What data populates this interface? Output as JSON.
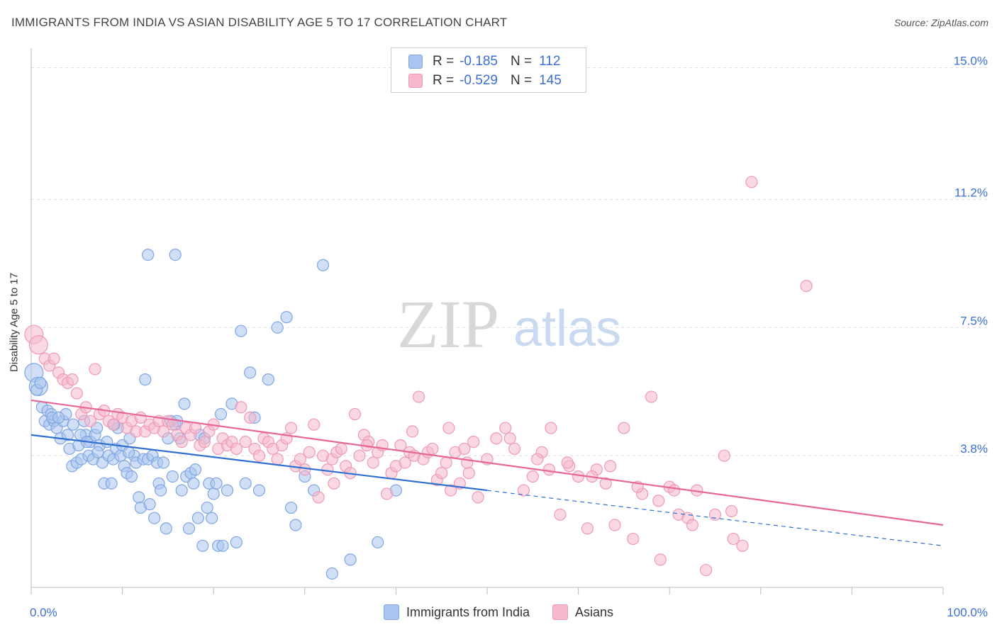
{
  "title": "IMMIGRANTS FROM INDIA VS ASIAN DISABILITY AGE 5 TO 17 CORRELATION CHART",
  "source": "Source: ZipAtlas.com",
  "watermark": {
    "zip": "ZIP",
    "atlas": "atlas"
  },
  "colors": {
    "blue_fill": "#a9c4ef",
    "blue_stroke": "#7fa6e3",
    "blue_line": "#2f6fd1",
    "pink_fill": "#f6b8cc",
    "pink_stroke": "#ee9ab6",
    "pink_line": "#e8679a",
    "value_text": "#3b6fd4",
    "grid": "#dddddd"
  },
  "legend": {
    "rows": [
      {
        "r_label": "R =",
        "r_value": "-0.185",
        "n_label": "N =",
        "n_value": "112",
        "color": "#a9c4ef"
      },
      {
        "r_label": "R =",
        "r_value": "-0.529",
        "n_label": "N =",
        "n_value": "145",
        "color": "#f6b8cc"
      }
    ]
  },
  "chart_data": {
    "type": "scatter",
    "title": "IMMIGRANTS FROM INDIA VS ASIAN DISABILITY AGE 5 TO 17 CORRELATION CHART",
    "xlabel": "",
    "ylabel": "Disability Age 5 to 17",
    "xlim": [
      0,
      100
    ],
    "ylim": [
      0,
      15.4
    ],
    "x_tick_labels": [
      {
        "value": 0,
        "label": "0.0%"
      },
      {
        "value": 100,
        "label": "100.0%"
      }
    ],
    "y_tick_labels": [
      {
        "value": 3.8,
        "label": "3.8%"
      },
      {
        "value": 7.5,
        "label": "7.5%"
      },
      {
        "value": 11.2,
        "label": "11.2%"
      },
      {
        "value": 15.0,
        "label": "15.0%"
      }
    ],
    "grid": true,
    "legend_position": "top-center",
    "series": [
      {
        "name": "Immigrants from India",
        "color": "#a9c4ef",
        "r": -0.185,
        "n": 112,
        "trend": {
          "x0": 0,
          "y0": 4.4,
          "x1": 50,
          "y1": 2.8,
          "dashed_to_x": 100,
          "dashed_to_y": 1.2
        },
        "points": [
          [
            0.3,
            6.2
          ],
          [
            0.8,
            5.8
          ],
          [
            1.2,
            5.2
          ],
          [
            1.5,
            4.8
          ],
          [
            1.8,
            5.1
          ],
          [
            2.0,
            4.7
          ],
          [
            2.5,
            4.8
          ],
          [
            2.2,
            5.0
          ],
          [
            2.8,
            4.6
          ],
          [
            3.2,
            4.3
          ],
          [
            3.5,
            4.8
          ],
          [
            3.8,
            5.0
          ],
          [
            4.0,
            4.4
          ],
          [
            4.2,
            4.0
          ],
          [
            4.5,
            3.5
          ],
          [
            5.0,
            3.6
          ],
          [
            5.2,
            4.1
          ],
          [
            5.5,
            3.7
          ],
          [
            5.8,
            4.8
          ],
          [
            6.0,
            4.4
          ],
          [
            6.3,
            3.8
          ],
          [
            6.5,
            4.2
          ],
          [
            6.8,
            3.7
          ],
          [
            7.0,
            4.4
          ],
          [
            7.2,
            4.6
          ],
          [
            7.5,
            4.1
          ],
          [
            7.8,
            3.6
          ],
          [
            8.0,
            3.0
          ],
          [
            8.3,
            4.2
          ],
          [
            8.5,
            3.8
          ],
          [
            8.8,
            3.0
          ],
          [
            9.0,
            3.7
          ],
          [
            9.3,
            4.0
          ],
          [
            9.5,
            4.6
          ],
          [
            9.8,
            3.8
          ],
          [
            10.0,
            4.1
          ],
          [
            10.2,
            3.5
          ],
          [
            10.5,
            3.3
          ],
          [
            10.8,
            4.3
          ],
          [
            11.0,
            3.2
          ],
          [
            11.3,
            3.8
          ],
          [
            11.5,
            3.6
          ],
          [
            11.8,
            2.6
          ],
          [
            12.0,
            2.3
          ],
          [
            12.3,
            3.7
          ],
          [
            12.5,
            6.0
          ],
          [
            12.8,
            3.7
          ],
          [
            13.0,
            2.4
          ],
          [
            13.3,
            3.8
          ],
          [
            13.5,
            2.0
          ],
          [
            13.8,
            3.6
          ],
          [
            14.0,
            3.0
          ],
          [
            14.2,
            2.8
          ],
          [
            14.5,
            3.6
          ],
          [
            14.8,
            1.7
          ],
          [
            15.0,
            4.3
          ],
          [
            15.3,
            4.8
          ],
          [
            15.5,
            3.2
          ],
          [
            15.8,
            4.7
          ],
          [
            16.0,
            4.8
          ],
          [
            16.3,
            4.3
          ],
          [
            16.5,
            2.8
          ],
          [
            16.8,
            5.3
          ],
          [
            17.0,
            3.2
          ],
          [
            17.3,
            1.7
          ],
          [
            17.5,
            3.3
          ],
          [
            17.8,
            3.0
          ],
          [
            18.0,
            3.4
          ],
          [
            18.3,
            2.0
          ],
          [
            18.5,
            4.4
          ],
          [
            18.8,
            1.2
          ],
          [
            19.0,
            4.3
          ],
          [
            19.3,
            2.3
          ],
          [
            19.5,
            3.0
          ],
          [
            19.8,
            2.0
          ],
          [
            20.0,
            2.7
          ],
          [
            20.3,
            3.0
          ],
          [
            20.5,
            1.2
          ],
          [
            20.8,
            5.0
          ],
          [
            21.0,
            1.2
          ],
          [
            21.5,
            2.8
          ],
          [
            22.0,
            5.3
          ],
          [
            22.5,
            1.3
          ],
          [
            23.0,
            7.4
          ],
          [
            23.5,
            3.0
          ],
          [
            24.0,
            6.2
          ],
          [
            24.5,
            4.9
          ],
          [
            25.0,
            2.8
          ],
          [
            26.0,
            6.0
          ],
          [
            27.0,
            7.5
          ],
          [
            28.0,
            7.8
          ],
          [
            28.5,
            2.3
          ],
          [
            29.0,
            1.8
          ],
          [
            30.0,
            3.2
          ],
          [
            31.0,
            2.8
          ],
          [
            32.0,
            9.3
          ],
          [
            33.0,
            0.4
          ],
          [
            35.0,
            0.8
          ],
          [
            38.0,
            1.3
          ],
          [
            40.0,
            2.8
          ],
          [
            12.8,
            9.6
          ],
          [
            15.8,
            9.6
          ],
          [
            0.6,
            5.7
          ],
          [
            1.0,
            5.9
          ],
          [
            2.3,
            4.9
          ],
          [
            3.0,
            4.9
          ],
          [
            4.6,
            4.7
          ],
          [
            5.4,
            4.4
          ],
          [
            6.1,
            4.2
          ],
          [
            7.3,
            3.9
          ],
          [
            9.1,
            4.7
          ],
          [
            10.7,
            3.9
          ]
        ]
      },
      {
        "name": "Asians",
        "color": "#f6b8cc",
        "r": -0.529,
        "n": 145,
        "trend": {
          "x0": 0,
          "y0": 5.4,
          "x1": 100,
          "y1": 1.8
        },
        "points": [
          [
            0.3,
            7.3
          ],
          [
            0.8,
            7.0
          ],
          [
            1.5,
            6.6
          ],
          [
            2.0,
            6.4
          ],
          [
            2.5,
            6.6
          ],
          [
            3.0,
            6.2
          ],
          [
            3.5,
            6.0
          ],
          [
            4.0,
            5.9
          ],
          [
            4.5,
            6.0
          ],
          [
            5.0,
            5.6
          ],
          [
            5.5,
            5.0
          ],
          [
            6.0,
            5.2
          ],
          [
            6.5,
            4.8
          ],
          [
            7.0,
            6.3
          ],
          [
            7.5,
            5.0
          ],
          [
            8.0,
            5.1
          ],
          [
            8.5,
            4.8
          ],
          [
            9.0,
            4.7
          ],
          [
            9.5,
            5.0
          ],
          [
            10.0,
            4.9
          ],
          [
            10.5,
            4.6
          ],
          [
            11.0,
            4.8
          ],
          [
            11.5,
            4.5
          ],
          [
            12.0,
            4.9
          ],
          [
            12.5,
            4.5
          ],
          [
            13.0,
            4.7
          ],
          [
            13.5,
            4.6
          ],
          [
            14.0,
            4.8
          ],
          [
            14.5,
            4.5
          ],
          [
            15.0,
            4.8
          ],
          [
            15.5,
            4.7
          ],
          [
            16.0,
            4.4
          ],
          [
            16.5,
            4.2
          ],
          [
            17.0,
            4.6
          ],
          [
            17.5,
            4.4
          ],
          [
            18.0,
            4.6
          ],
          [
            18.5,
            4.1
          ],
          [
            19.0,
            4.2
          ],
          [
            19.5,
            4.5
          ],
          [
            20.0,
            4.7
          ],
          [
            20.5,
            4.0
          ],
          [
            21.0,
            4.3
          ],
          [
            21.5,
            4.1
          ],
          [
            22.0,
            4.2
          ],
          [
            22.5,
            4.0
          ],
          [
            23.0,
            5.2
          ],
          [
            23.5,
            4.2
          ],
          [
            24.0,
            4.9
          ],
          [
            24.5,
            4.0
          ],
          [
            25.0,
            3.8
          ],
          [
            25.5,
            4.3
          ],
          [
            26.0,
            4.2
          ],
          [
            26.5,
            4.0
          ],
          [
            27.0,
            3.7
          ],
          [
            27.5,
            4.1
          ],
          [
            28.0,
            4.3
          ],
          [
            28.5,
            4.6
          ],
          [
            29.0,
            3.5
          ],
          [
            29.5,
            3.7
          ],
          [
            30.0,
            3.4
          ],
          [
            30.5,
            3.9
          ],
          [
            31.0,
            4.7
          ],
          [
            31.5,
            2.6
          ],
          [
            32.0,
            3.8
          ],
          [
            32.5,
            3.4
          ],
          [
            33.0,
            3.7
          ],
          [
            33.5,
            3.9
          ],
          [
            34.0,
            4.0
          ],
          [
            34.5,
            3.5
          ],
          [
            35.0,
            3.3
          ],
          [
            35.5,
            5.0
          ],
          [
            36.0,
            3.8
          ],
          [
            36.5,
            4.4
          ],
          [
            37.0,
            4.2
          ],
          [
            37.5,
            3.6
          ],
          [
            38.0,
            3.9
          ],
          [
            38.5,
            4.1
          ],
          [
            39.0,
            2.7
          ],
          [
            39.5,
            3.3
          ],
          [
            40.0,
            3.5
          ],
          [
            40.5,
            4.1
          ],
          [
            41.0,
            3.6
          ],
          [
            41.5,
            3.9
          ],
          [
            42.0,
            3.8
          ],
          [
            42.5,
            5.5
          ],
          [
            43.0,
            3.7
          ],
          [
            43.5,
            3.9
          ],
          [
            44.0,
            4.0
          ],
          [
            44.5,
            3.1
          ],
          [
            45.0,
            3.3
          ],
          [
            45.5,
            3.6
          ],
          [
            46.0,
            2.8
          ],
          [
            46.5,
            3.9
          ],
          [
            47.0,
            3.0
          ],
          [
            47.5,
            4.0
          ],
          [
            48.0,
            3.3
          ],
          [
            48.5,
            4.2
          ],
          [
            49.0,
            2.6
          ],
          [
            50.0,
            3.7
          ],
          [
            51.0,
            4.3
          ],
          [
            52.0,
            4.6
          ],
          [
            53.0,
            4.0
          ],
          [
            54.0,
            2.8
          ],
          [
            55.0,
            3.2
          ],
          [
            56.0,
            3.9
          ],
          [
            57.0,
            4.6
          ],
          [
            58.0,
            2.1
          ],
          [
            59.0,
            3.5
          ],
          [
            60.0,
            3.2
          ],
          [
            61.0,
            1.7
          ],
          [
            62.0,
            3.4
          ],
          [
            63.0,
            3.0
          ],
          [
            64.0,
            1.8
          ],
          [
            65.0,
            4.6
          ],
          [
            66.0,
            1.4
          ],
          [
            67.0,
            2.7
          ],
          [
            68.0,
            5.5
          ],
          [
            69.0,
            0.8
          ],
          [
            70.0,
            2.9
          ],
          [
            71.0,
            2.1
          ],
          [
            72.0,
            2.0
          ],
          [
            73.0,
            2.8
          ],
          [
            74.0,
            0.5
          ],
          [
            75.0,
            2.1
          ],
          [
            76.0,
            3.8
          ],
          [
            77.0,
            1.4
          ],
          [
            78.0,
            1.2
          ],
          [
            79.0,
            11.7
          ],
          [
            85.0,
            8.7
          ],
          [
            33.2,
            3.0
          ],
          [
            36.8,
            4.1
          ],
          [
            41.8,
            4.5
          ],
          [
            45.8,
            4.6
          ],
          [
            47.8,
            3.6
          ],
          [
            52.5,
            4.3
          ],
          [
            55.5,
            3.7
          ],
          [
            56.8,
            3.4
          ],
          [
            58.8,
            3.6
          ],
          [
            61.5,
            3.2
          ],
          [
            63.5,
            3.5
          ],
          [
            66.5,
            2.9
          ],
          [
            68.8,
            2.5
          ],
          [
            70.5,
            2.8
          ],
          [
            72.5,
            1.8
          ],
          [
            76.8,
            2.2
          ]
        ]
      }
    ]
  },
  "bottom_legend": [
    {
      "label": "Immigrants from India",
      "color": "#a9c4ef"
    },
    {
      "label": "Asians",
      "color": "#f6b8cc"
    }
  ]
}
